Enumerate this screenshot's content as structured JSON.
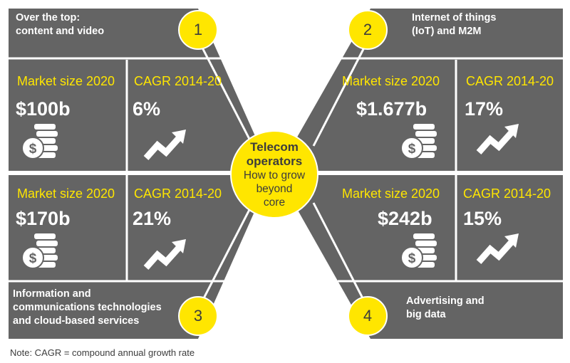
{
  "center": {
    "title_line1": "Telecom",
    "title_line2": "operators",
    "subtitle_line1": "How to grow",
    "subtitle_line2": "beyond",
    "subtitle_line3": "core"
  },
  "segments": [
    {
      "number": "1",
      "caption_line1": "Over the top:",
      "caption_line2": "content and video",
      "market_label": "Market size 2020",
      "market_value": "$100b",
      "cagr_label": "CAGR 2014-20",
      "cagr_value": "6%"
    },
    {
      "number": "2",
      "caption_line1": "Internet of things",
      "caption_line2": "(IoT) and M2M",
      "market_label": "Market size 2020",
      "market_value": "$1.677b",
      "cagr_label": "CAGR 2014-20",
      "cagr_value": "17%"
    },
    {
      "number": "3",
      "caption_line1": "Information and",
      "caption_line2": "communications technologies",
      "caption_line3": "and cloud-based services",
      "market_label": "Market size 2020",
      "market_value": "$170b",
      "cagr_label": "CAGR 2014-20",
      "cagr_value": "21%"
    },
    {
      "number": "4",
      "caption_line1": "Advertising and",
      "caption_line2": "big data",
      "market_label": "Market size 2020",
      "market_value": "$242b",
      "cagr_label": "CAGR 2014-20",
      "cagr_value": "15%"
    }
  ],
  "icons": {
    "market": "coin-stack-dollar-icon",
    "cagr": "upward-trend-arrow-icon"
  },
  "note": "Note: CAGR = compound annual growth rate",
  "colors": {
    "panel": "#646464",
    "accent": "#ffe600",
    "text": "#ffffff",
    "divider": "#ffffff",
    "note_text": "#3c3c3c"
  }
}
